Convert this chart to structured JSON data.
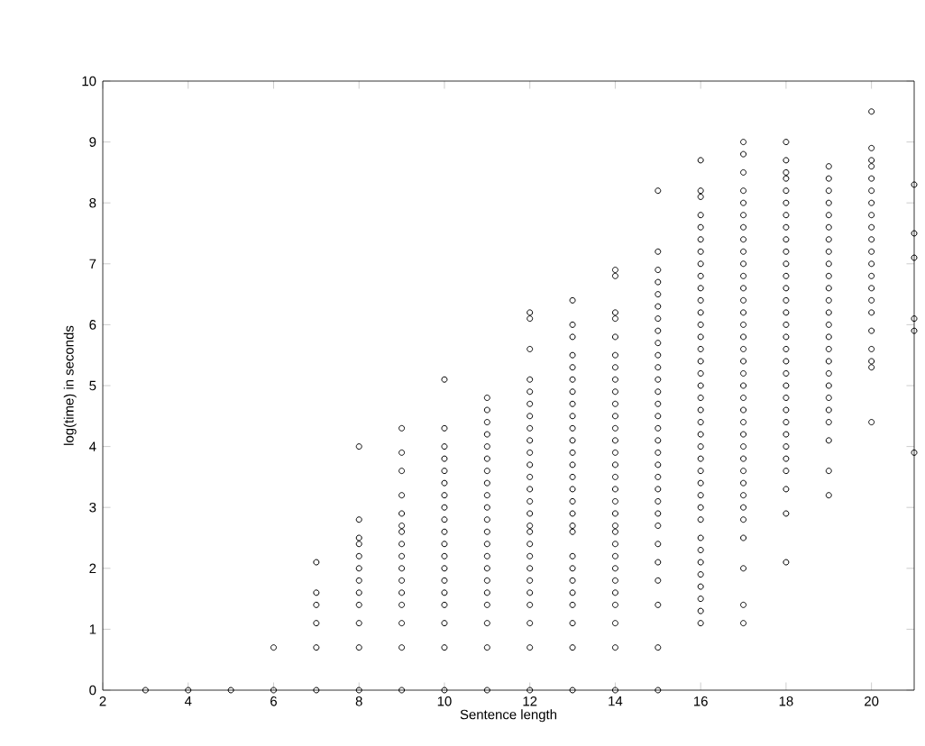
{
  "chart_data": {
    "type": "scatter",
    "xlabel": "Sentence length",
    "ylabel": "log(time) in seconds",
    "xlim": [
      2,
      21
    ],
    "ylim": [
      0,
      10
    ],
    "xticks": [
      2,
      4,
      6,
      8,
      10,
      12,
      14,
      16,
      18,
      20
    ],
    "yticks": [
      0,
      1,
      2,
      3,
      4,
      5,
      6,
      7,
      8,
      9,
      10
    ],
    "marker": "circle",
    "series": [
      {
        "color": "#000000",
        "x": [
          3,
          4,
          5,
          6,
          7,
          8,
          9,
          10,
          11,
          12,
          13,
          14,
          15,
          6,
          7,
          7,
          7,
          7,
          7,
          8,
          8,
          8,
          8,
          8,
          8,
          8,
          8,
          8,
          8,
          8,
          9,
          9,
          9,
          9,
          9,
          9,
          9,
          9,
          9,
          9,
          9,
          9,
          9,
          9,
          9,
          10,
          10,
          10,
          10,
          10,
          10,
          10,
          10,
          10,
          10,
          10,
          10,
          10,
          10,
          10,
          10,
          10,
          10,
          11,
          11,
          11,
          11,
          11,
          11,
          11,
          11,
          11,
          11,
          11,
          11,
          11,
          11,
          11,
          11,
          11,
          11,
          11,
          11,
          12,
          12,
          12,
          12,
          12,
          12,
          12,
          12,
          12,
          12,
          12,
          12,
          12,
          12,
          12,
          12,
          12,
          12,
          12,
          12,
          12,
          12,
          12,
          12,
          12,
          13,
          13,
          13,
          13,
          13,
          13,
          13,
          13,
          13,
          13,
          13,
          13,
          13,
          13,
          13,
          13,
          13,
          13,
          13,
          13,
          13,
          13,
          13,
          13,
          13,
          13,
          14,
          14,
          14,
          14,
          14,
          14,
          14,
          14,
          14,
          14,
          14,
          14,
          14,
          14,
          14,
          14,
          14,
          14,
          14,
          14,
          14,
          14,
          14,
          14,
          14,
          14,
          14,
          14,
          14,
          15,
          15,
          15,
          15,
          15,
          15,
          15,
          15,
          15,
          15,
          15,
          15,
          15,
          15,
          15,
          15,
          15,
          15,
          15,
          15,
          15,
          15,
          15,
          15,
          15,
          15,
          15,
          15,
          15,
          16,
          16,
          16,
          16,
          16,
          16,
          16,
          16,
          16,
          16,
          16,
          16,
          16,
          16,
          16,
          16,
          16,
          16,
          16,
          16,
          16,
          16,
          16,
          16,
          16,
          16,
          16,
          16,
          16,
          16,
          16,
          16,
          16,
          16,
          16,
          16,
          16,
          17,
          17,
          17,
          17,
          17,
          17,
          17,
          17,
          17,
          17,
          17,
          17,
          17,
          17,
          17,
          17,
          17,
          17,
          17,
          17,
          17,
          17,
          17,
          17,
          17,
          17,
          17,
          17,
          17,
          17,
          17,
          17,
          17,
          17,
          17,
          18,
          18,
          18,
          18,
          18,
          18,
          18,
          18,
          18,
          18,
          18,
          18,
          18,
          18,
          18,
          18,
          18,
          18,
          18,
          18,
          18,
          18,
          18,
          18,
          18,
          18,
          18,
          18,
          18,
          18,
          18,
          19,
          19,
          19,
          19,
          19,
          19,
          19,
          19,
          19,
          19,
          19,
          19,
          19,
          19,
          19,
          19,
          19,
          19,
          19,
          19,
          19,
          19,
          19,
          19,
          19,
          20,
          20,
          20,
          20,
          20,
          20,
          20,
          20,
          20,
          20,
          20,
          20,
          20,
          20,
          20,
          20,
          20,
          20,
          20,
          20,
          20,
          21,
          21,
          21,
          21,
          21,
          21
        ],
        "values": [
          0,
          0,
          0,
          0,
          0,
          0,
          0,
          0,
          0,
          0,
          0,
          0,
          0,
          0.7,
          0.7,
          1.1,
          1.4,
          1.6,
          2.1,
          0.7,
          1.1,
          1.4,
          1.6,
          1.8,
          2.0,
          2.2,
          2.4,
          2.5,
          2.8,
          4.0,
          0.7,
          1.1,
          1.4,
          1.6,
          1.8,
          2.0,
          2.2,
          2.4,
          2.6,
          2.7,
          2.9,
          3.2,
          3.6,
          3.9,
          4.3,
          0.7,
          1.1,
          1.4,
          1.6,
          1.8,
          2.0,
          2.2,
          2.4,
          2.6,
          2.8,
          3.0,
          3.2,
          3.4,
          3.6,
          3.8,
          4.0,
          4.3,
          5.1,
          0.7,
          1.1,
          1.4,
          1.6,
          1.8,
          2.0,
          2.2,
          2.4,
          2.6,
          2.8,
          3.0,
          3.2,
          3.4,
          3.6,
          3.8,
          4.0,
          4.2,
          4.4,
          4.6,
          4.8,
          6.2,
          6.1,
          5.6,
          5.1,
          4.9,
          4.7,
          4.5,
          4.3,
          4.1,
          3.9,
          3.7,
          3.5,
          3.3,
          3.1,
          2.9,
          2.7,
          2.6,
          2.4,
          2.2,
          2.0,
          1.8,
          1.6,
          1.4,
          1.1,
          0.7,
          6.4,
          6.0,
          5.8,
          5.5,
          5.3,
          5.1,
          4.9,
          4.7,
          4.5,
          4.3,
          4.1,
          3.9,
          3.7,
          3.5,
          3.3,
          3.1,
          2.9,
          2.7,
          2.6,
          2.2,
          2.0,
          1.8,
          1.6,
          1.4,
          1.1,
          0.7,
          6.9,
          6.8,
          6.2,
          6.1,
          5.8,
          5.5,
          5.3,
          5.1,
          4.9,
          4.7,
          4.5,
          4.3,
          4.1,
          3.9,
          3.7,
          3.5,
          3.3,
          3.1,
          2.9,
          2.7,
          2.6,
          2.4,
          2.2,
          2.0,
          1.8,
          1.6,
          1.4,
          1.1,
          0.7,
          8.2,
          7.2,
          6.9,
          6.7,
          6.5,
          6.3,
          6.1,
          5.9,
          5.7,
          5.5,
          5.3,
          5.1,
          4.9,
          4.7,
          4.5,
          4.3,
          4.1,
          3.9,
          3.7,
          3.5,
          3.3,
          3.1,
          2.9,
          2.7,
          2.4,
          2.1,
          1.8,
          1.4,
          0.7,
          8.7,
          8.2,
          8.1,
          7.8,
          7.6,
          7.4,
          7.2,
          7.0,
          6.8,
          6.6,
          6.4,
          6.2,
          6.0,
          5.8,
          5.6,
          5.4,
          5.2,
          5.0,
          4.8,
          4.6,
          4.4,
          4.2,
          4.0,
          3.8,
          3.6,
          3.4,
          3.2,
          3.0,
          2.8,
          2.5,
          2.3,
          2.1,
          1.9,
          1.7,
          1.5,
          1.3,
          1.1,
          9.0,
          8.8,
          8.5,
          8.2,
          8.0,
          7.8,
          7.6,
          7.4,
          7.2,
          7.0,
          6.8,
          6.6,
          6.4,
          6.2,
          6.0,
          5.8,
          5.6,
          5.4,
          5.2,
          5.0,
          4.8,
          4.6,
          4.4,
          4.2,
          4.0,
          3.8,
          3.6,
          3.4,
          3.2,
          3.0,
          2.8,
          2.5,
          2.0,
          1.4,
          1.1,
          9.0,
          8.7,
          8.5,
          8.4,
          8.2,
          8.0,
          7.8,
          7.6,
          7.4,
          7.2,
          7.0,
          6.8,
          6.6,
          6.4,
          6.2,
          6.0,
          5.8,
          5.6,
          5.4,
          5.2,
          5.0,
          4.8,
          4.6,
          4.4,
          4.2,
          4.0,
          3.8,
          3.6,
          3.3,
          2.9,
          2.1,
          8.6,
          8.4,
          8.2,
          8.0,
          7.8,
          7.6,
          7.4,
          7.2,
          7.0,
          6.8,
          6.6,
          6.4,
          6.2,
          6.0,
          5.8,
          5.6,
          5.4,
          5.2,
          5.0,
          4.8,
          4.6,
          4.4,
          4.1,
          3.6,
          3.2,
          9.5,
          8.9,
          8.7,
          8.6,
          8.4,
          8.2,
          8.0,
          7.8,
          7.6,
          7.4,
          7.2,
          7.0,
          6.8,
          6.6,
          6.4,
          6.2,
          5.9,
          5.6,
          5.4,
          5.3,
          4.4,
          8.3,
          7.5,
          7.1,
          6.1,
          5.9,
          3.9
        ]
      }
    ]
  }
}
